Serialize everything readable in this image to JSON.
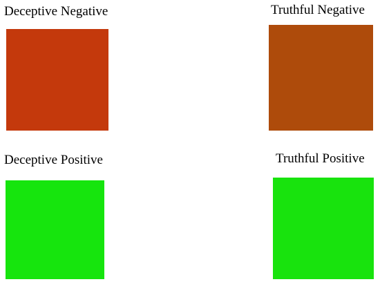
{
  "quadrants": [
    {
      "label": "Deceptive Negative",
      "color": "#c4390c"
    },
    {
      "label": "Truthful Negative",
      "color": "#ae4b0b"
    },
    {
      "label": "Deceptive Positive",
      "color": "#16e50d"
    },
    {
      "label": "Truthful Positive",
      "color": "#18e30d"
    }
  ]
}
